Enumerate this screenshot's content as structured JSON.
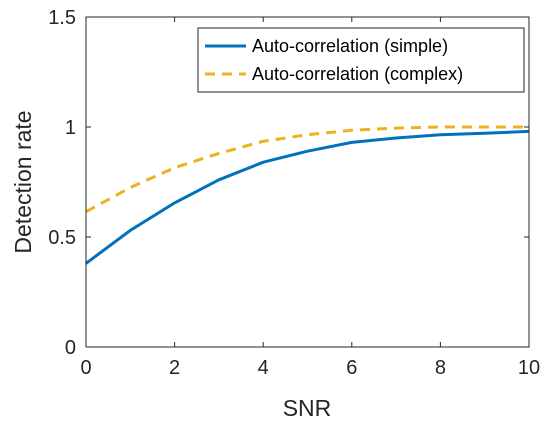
{
  "chart_data": {
    "type": "line",
    "xlabel": "SNR",
    "ylabel": "Detection rate",
    "xlim": [
      0,
      10
    ],
    "ylim": [
      0,
      1.5
    ],
    "xticks": [
      0,
      2,
      4,
      6,
      8,
      10
    ],
    "yticks": [
      0,
      0.5,
      1,
      1.5
    ],
    "xtick_labels": [
      "0",
      "2",
      "4",
      "6",
      "8",
      "10"
    ],
    "ytick_labels": [
      "0",
      "0.5",
      "1",
      "1.5"
    ],
    "grid": false,
    "legend_position": "top-right",
    "x": [
      0,
      1,
      2,
      3,
      4,
      5,
      6,
      7,
      8,
      9,
      10
    ],
    "series": [
      {
        "name": "Auto-correlation (simple)",
        "values": [
          0.38,
          0.53,
          0.655,
          0.76,
          0.84,
          0.89,
          0.93,
          0.95,
          0.965,
          0.972,
          0.98
        ],
        "color": "#0072BD",
        "style": "solid"
      },
      {
        "name": "Auto-correlation (complex)",
        "values": [
          0.615,
          0.725,
          0.815,
          0.88,
          0.935,
          0.965,
          0.985,
          0.995,
          1.0,
          1.0,
          1.0
        ],
        "color": "#EDB120",
        "style": "dashed"
      }
    ]
  }
}
